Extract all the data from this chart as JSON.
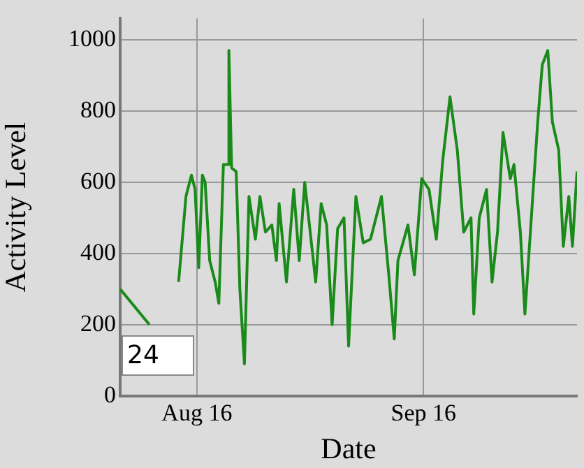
{
  "chart_data": {
    "type": "line",
    "xlabel": "Date",
    "ylabel": "Activity Level",
    "annotations": [
      "24"
    ],
    "series": [
      {
        "color": "#1a8a1a",
        "x": [
          "--08-05T12:00",
          "--08-09T12:00",
          "--08-09T18:00",
          "--08-12T06:00",
          "--08-13T03:00",
          "--08-13T12:00",
          "--08-14T12:00",
          "--08-15T06:00",
          "--08-15T18:00",
          "--08-16T06:00",
          "--08-16T18:00",
          "--08-17T03:00",
          "--08-17T18:00",
          "--08-18T12:00",
          "--08-19T00:00",
          "--08-19T15:00",
          "--08-20T06:00",
          "--08-20T09:00",
          "--08-20T18:00",
          "--08-21T09:00",
          "--08-21T21:00",
          "--08-22T12:00",
          "--08-23T03:00",
          "--08-24T00:00",
          "--08-24T15:00",
          "--08-25T09:00",
          "--08-26T06:00",
          "--08-26T21:00",
          "--08-27T06:00",
          "--08-28T06:00",
          "--08-29T06:00",
          "--08-30T00:00",
          "--08-30T18:00",
          "--08-31T12:00",
          "--09-01T06:00",
          "--09-02T00:00",
          "--09-02T18:00",
          "--09-03T12:00",
          "--09-04T06:00",
          "--09-05T03:00",
          "--09-05T18:00",
          "--09-06T18:00",
          "--09-07T18:00",
          "--09-08T18:00",
          "--09-10T06:00",
          "--09-11T06:00",
          "--09-12T00:00",
          "--09-12T12:00",
          "--09-13T21:00",
          "--09-14T18:00",
          "--09-15T18:00",
          "--09-16T18:00",
          "--09-17T18:00",
          "--09-18T15:00",
          "--09-19T15:00",
          "--09-20T15:00",
          "--09-21T12:00",
          "--09-22T12:00",
          "--09-22T21:00",
          "--09-23T15:00",
          "--09-24T15:00",
          "--09-25T09:00",
          "--09-26T03:00",
          "--09-26T21:00",
          "--09-27T21:00",
          "--09-28T09:00",
          "--09-29T06:00",
          "--09-29T21:00",
          "--09-30T18:00",
          "--10-01T15:00",
          "--10-02T06:00",
          "--10-03T00:00",
          "--10-03T15:00",
          "--10-04T12:00",
          "--10-05T03:00",
          "--10-05T21:00",
          "--10-06T09:00",
          "--10-07T00:00"
        ],
        "values": [
          300,
          200,
          null,
          null,
          null,
          320,
          560,
          620,
          580,
          360,
          620,
          600,
          380,
          320,
          260,
          650,
          650,
          970,
          640,
          630,
          300,
          90,
          560,
          440,
          560,
          460,
          480,
          380,
          540,
          320,
          580,
          380,
          600,
          460,
          320,
          540,
          480,
          200,
          470,
          500,
          140,
          560,
          430,
          440,
          560,
          340,
          160,
          380,
          480,
          340,
          610,
          580,
          440,
          660,
          840,
          690,
          460,
          500,
          230,
          500,
          580,
          320,
          460,
          740,
          610,
          650,
          460,
          230,
          500,
          770,
          930,
          970,
          770,
          690,
          420,
          560,
          420,
          630
        ]
      }
    ],
    "xlim": [
      "--08-05T12:00",
      "--10-07T00:00"
    ],
    "xticks": [
      {
        "value": "--08-16",
        "label": "Aug 16"
      },
      {
        "value": "--09-16",
        "label": "Sep 16"
      }
    ],
    "ylim": [
      0,
      1060
    ],
    "yticks": [
      0,
      200,
      400,
      600,
      800,
      1000
    ],
    "grid": true,
    "legend": false,
    "marker": "none",
    "line_style": "solid"
  }
}
